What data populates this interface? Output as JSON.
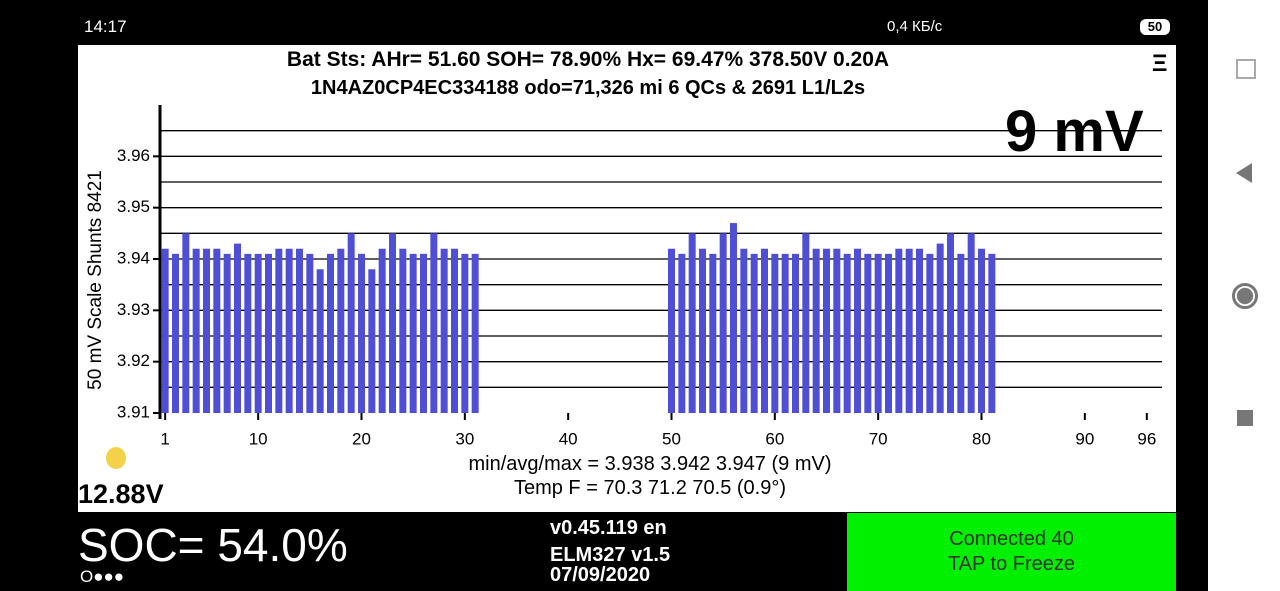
{
  "status_bar": {
    "time": "14:17",
    "speed": "0,4 КБ/с",
    "battery": "50"
  },
  "header": {
    "line1": "Bat Sts:  AHr= 51.60  SOH= 78.90%   Hx= 69.47%   378.50V 0.20A",
    "line2": "1N4AZ0CP4EC334188 odo=71,326 mi  6 QCs & 2691 L1/L2s",
    "menu": "Ξ"
  },
  "chart_data": {
    "type": "bar",
    "annotation": "9 mV",
    "ylabel": "50 mV Scale  Shunts 8421",
    "color": "#4f4fd6",
    "x": [
      1,
      2,
      3,
      4,
      5,
      6,
      7,
      8,
      9,
      10,
      11,
      12,
      13,
      14,
      15,
      16,
      17,
      18,
      19,
      20,
      21,
      22,
      23,
      24,
      25,
      26,
      27,
      28,
      29,
      30,
      31,
      32,
      33,
      34,
      35,
      36,
      37,
      38,
      39,
      40,
      41,
      42,
      43,
      44,
      45,
      46,
      47,
      48,
      49,
      50,
      51,
      52,
      53,
      54,
      55,
      56,
      57,
      58,
      59,
      60,
      61,
      62,
      63,
      64,
      65,
      66,
      67,
      68,
      69,
      70,
      71,
      72,
      73,
      74,
      75,
      76,
      77,
      78,
      79,
      80,
      81,
      82,
      83,
      84,
      85,
      86,
      87,
      88,
      89,
      90,
      91,
      92,
      93,
      94,
      95,
      96
    ],
    "values": [
      3.942,
      3.941,
      3.945,
      3.942,
      3.942,
      3.942,
      3.941,
      3.943,
      3.941,
      3.941,
      3.941,
      3.942,
      3.942,
      3.942,
      3.941,
      3.938,
      3.941,
      3.942,
      3.945,
      3.941,
      3.938,
      3.942,
      3.945,
      3.942,
      3.941,
      3.941,
      3.945,
      3.942,
      3.942,
      3.941,
      3.941,
      null,
      null,
      null,
      null,
      null,
      null,
      null,
      null,
      null,
      null,
      null,
      null,
      null,
      null,
      null,
      null,
      null,
      null,
      3.942,
      3.941,
      3.945,
      3.942,
      3.941,
      3.945,
      3.947,
      3.942,
      3.941,
      3.942,
      3.941,
      3.941,
      3.941,
      3.945,
      3.942,
      3.942,
      3.942,
      3.941,
      3.942,
      3.941,
      3.941,
      3.941,
      3.942,
      3.942,
      3.942,
      3.941,
      3.943,
      3.945,
      3.941,
      3.945,
      3.942,
      3.941,
      null,
      null,
      null,
      null,
      null,
      null,
      null,
      null,
      null,
      null,
      null,
      null,
      null,
      null,
      null
    ],
    "xlim": [
      0.5,
      96.5
    ],
    "xticks": [
      1,
      10,
      20,
      30,
      40,
      50,
      60,
      70,
      80,
      90,
      96
    ],
    "ylim": [
      3.91,
      3.97
    ],
    "yticks": [
      3.91,
      3.92,
      3.93,
      3.94,
      3.95,
      3.96
    ],
    "grid_lines": [
      3.915,
      3.92,
      3.925,
      3.93,
      3.935,
      3.94,
      3.945,
      3.95,
      3.955,
      3.96,
      3.965
    ],
    "stats": "min/avg/max = 3.938 3.942 3.947  (9 mV)",
    "temp": "Temp F = 70.3  71.2  70.5  (0.9°)"
  },
  "aux_voltage": "12.88V",
  "footer": {
    "soc": "SOC= 54.0%",
    "dots": "O●●●",
    "version": "v0.45.119 en",
    "adapter": "ELM327 v1.5",
    "date": "07/09/2020",
    "status": "Connected 40",
    "action": "TAP to Freeze"
  }
}
